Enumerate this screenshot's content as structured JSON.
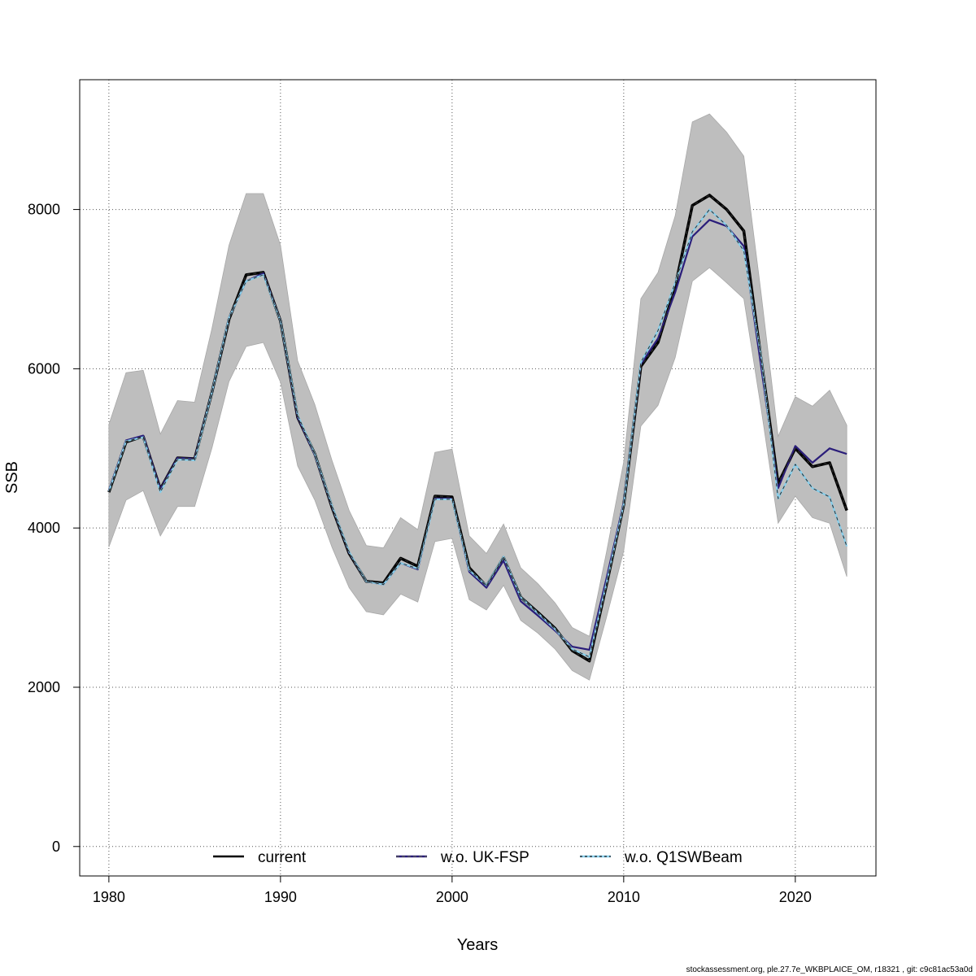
{
  "footer": "stockassessment.org, ple.27.7e_WKBPLAICE_OM, r18321 , git: c9c81ac53a0d",
  "chart_data": {
    "type": "line",
    "title": "",
    "xlabel": "Years",
    "ylabel": "SSB",
    "xlim": [
      1978.3,
      2024.7
    ],
    "ylim": [
      -370,
      9630
    ],
    "x_ticks": [
      1980,
      1990,
      2000,
      2010,
      2020
    ],
    "y_ticks": [
      0,
      2000,
      4000,
      6000,
      8000
    ],
    "grid": true,
    "legend_position": "bottom",
    "band_color": "#bebebe",
    "x": [
      1980,
      1981,
      1982,
      1983,
      1984,
      1985,
      1986,
      1987,
      1988,
      1989,
      1990,
      1991,
      1992,
      1993,
      1994,
      1995,
      1996,
      1997,
      1998,
      1999,
      2000,
      2001,
      2002,
      2003,
      2004,
      2005,
      2006,
      2007,
      2008,
      2009,
      2010,
      2011,
      2012,
      2013,
      2014,
      2015,
      2016,
      2017,
      2018,
      2019,
      2020,
      2021,
      2022,
      2023
    ],
    "band_upper": [
      5300,
      5950,
      5980,
      5180,
      5600,
      5580,
      6500,
      7550,
      8200,
      8200,
      7550,
      6100,
      5550,
      4850,
      4220,
      3780,
      3750,
      4130,
      3980,
      4950,
      4990,
      3900,
      3680,
      4050,
      3500,
      3300,
      3060,
      2750,
      2640,
      3700,
      4830,
      6880,
      7210,
      7920,
      9100,
      9200,
      8970,
      8670,
      6960,
      5150,
      5650,
      5530,
      5730,
      5290
    ],
    "band_lower": [
      3760,
      4350,
      4470,
      3900,
      4270,
      4270,
      5000,
      5840,
      6280,
      6330,
      5830,
      4780,
      4350,
      3760,
      3250,
      2950,
      2910,
      3170,
      3070,
      3830,
      3870,
      3100,
      2970,
      3280,
      2840,
      2680,
      2480,
      2210,
      2090,
      2880,
      3710,
      5280,
      5540,
      6140,
      7100,
      7270,
      7080,
      6880,
      5510,
      4060,
      4400,
      4130,
      4060,
      3390
    ],
    "series": [
      {
        "name": "current",
        "color": "#000000",
        "dash": "",
        "width": 3.5,
        "values": [
          4450,
          5080,
          5150,
          4490,
          4880,
          4870,
          5700,
          6620,
          7180,
          7210,
          6600,
          5390,
          4930,
          4260,
          3680,
          3330,
          3310,
          3620,
          3520,
          4400,
          4390,
          3500,
          3270,
          3630,
          3130,
          2940,
          2740,
          2460,
          2330,
          3290,
          4290,
          6030,
          6330,
          7030,
          8050,
          8180,
          8000,
          7730,
          6130,
          4560,
          5000,
          4770,
          4820,
          4220
        ]
      },
      {
        "name": "w.o. UK-FSP",
        "color": "#2a1d7a",
        "dash": "",
        "width": 2.2,
        "values": [
          4470,
          5100,
          5160,
          4490,
          4880,
          4870,
          5700,
          6640,
          7100,
          7200,
          6600,
          5390,
          4920,
          4270,
          3690,
          3330,
          3290,
          3560,
          3480,
          4370,
          4370,
          3450,
          3250,
          3590,
          3080,
          2900,
          2710,
          2510,
          2470,
          3370,
          4320,
          6060,
          6380,
          6960,
          7660,
          7870,
          7790,
          7540,
          6040,
          4500,
          5030,
          4820,
          5000,
          4930
        ]
      },
      {
        "name": "w.o. Q1SWBeam",
        "color": "#87ceeb",
        "dash": "",
        "width": 2.2,
        "values": [
          4460,
          5090,
          5140,
          4450,
          4860,
          4850,
          5700,
          6640,
          7100,
          7180,
          6600,
          5420,
          4930,
          4280,
          3700,
          3330,
          3290,
          3560,
          3490,
          4360,
          4360,
          3470,
          3280,
          3640,
          3130,
          2930,
          2730,
          2480,
          2380,
          3310,
          4300,
          6080,
          6480,
          7080,
          7720,
          8000,
          7800,
          7480,
          6160,
          4370,
          4800,
          4500,
          4390,
          3770
        ]
      },
      {
        "name": "",
        "color": "#2b2b2b",
        "dash": "4,4",
        "width": 1.3,
        "values": [
          4450,
          5080,
          5150,
          4490,
          4880,
          4870,
          5700,
          6620,
          7180,
          7210,
          6600,
          5390,
          4930,
          4260,
          3680,
          3330,
          3310,
          3620,
          3520,
          4400,
          4390,
          3500,
          3270,
          3630,
          3130,
          2940,
          2740,
          2460,
          2330,
          3290,
          4290,
          6030,
          6330,
          7030,
          8050,
          8180,
          8000,
          7730,
          6130,
          4560,
          5000,
          4770,
          4820,
          4220
        ]
      },
      {
        "name": "",
        "color": "#2b2b2b",
        "dash": "4,4",
        "width": 1.0,
        "values": [
          4460,
          5090,
          5140,
          4450,
          4860,
          4850,
          5700,
          6640,
          7100,
          7180,
          6600,
          5420,
          4930,
          4280,
          3700,
          3330,
          3290,
          3560,
          3490,
          4360,
          4360,
          3470,
          3280,
          3640,
          3130,
          2930,
          2730,
          2480,
          2380,
          3310,
          4300,
          6080,
          6480,
          7080,
          7720,
          8000,
          7800,
          7480,
          6160,
          4370,
          4800,
          4500,
          4390,
          3770
        ]
      }
    ],
    "legend": [
      {
        "label": "current",
        "color": "#000000",
        "dash": ""
      },
      {
        "label": "w.o. UK-FSP",
        "color": "#2a1d7a",
        "dash": "4,3",
        "overlay": "#555555"
      },
      {
        "label": "w.o. Q1SWBeam",
        "color": "#87ceeb",
        "dash": "3,3",
        "overlay": "#1a1a1a"
      }
    ]
  }
}
